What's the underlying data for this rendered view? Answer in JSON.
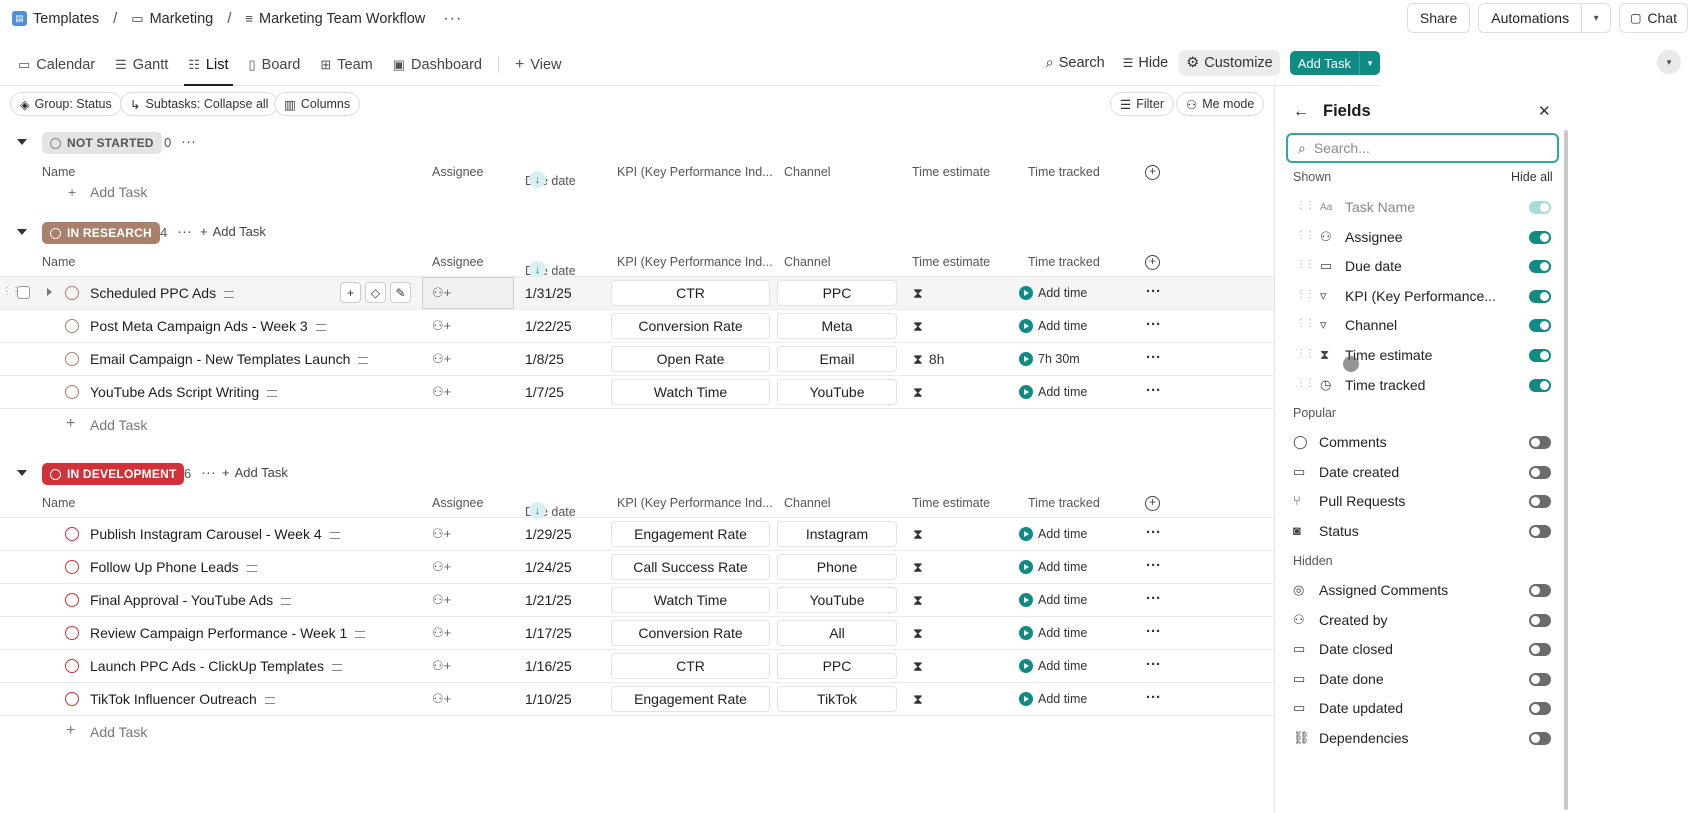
{
  "breadcrumb": {
    "items": [
      "Templates",
      "Marketing",
      "Marketing Team Workflow"
    ],
    "more": "···"
  },
  "topActions": {
    "share": "Share",
    "automations": "Automations",
    "chat": "Chat"
  },
  "tabs": [
    {
      "label": "Calendar",
      "icon": "calendar-icon"
    },
    {
      "label": "Gantt",
      "icon": "gantt-icon"
    },
    {
      "label": "List",
      "icon": "list-icon",
      "active": true
    },
    {
      "label": "Board",
      "icon": "board-icon"
    },
    {
      "label": "Team",
      "icon": "team-icon"
    },
    {
      "label": "Dashboard",
      "icon": "dashboard-icon"
    }
  ],
  "addView": "View",
  "toolbarRight": {
    "search": "Search",
    "hide": "Hide",
    "customize": "Customize",
    "addTask": "Add Task"
  },
  "filters": {
    "group": "Group: Status",
    "subtasks": "Subtasks: Collapse all",
    "columns": "Columns",
    "filter": "Filter",
    "meMode": "Me mode"
  },
  "columns": {
    "name": "Name",
    "assignee": "Assignee",
    "due": "Due date",
    "kpi": "KPI (Key Performance Ind...",
    "channel": "Channel",
    "estimate": "Time estimate",
    "tracked": "Time tracked"
  },
  "addTaskLabel": "Add Task",
  "addTimeLabel": "Add time",
  "groups": [
    {
      "status": "NOT STARTED",
      "count": "0",
      "bg": "#e4e4e4",
      "fg": "#555555",
      "tasks": []
    },
    {
      "status": "IN RESEARCH",
      "count": "4",
      "bg": "#a9806c",
      "fg": "#ffffff",
      "tasks": [
        {
          "name": "Scheduled PPC Ads",
          "due": "1/31/25",
          "kpi": "CTR",
          "channel": "PPC",
          "estimate": "",
          "tracked": ""
        },
        {
          "name": "Post Meta Campaign Ads - Week 3",
          "due": "1/22/25",
          "kpi": "Conversion Rate",
          "channel": "Meta",
          "estimate": "",
          "tracked": ""
        },
        {
          "name": "Email Campaign - New Templates Launch",
          "due": "1/8/25",
          "kpi": "Open Rate",
          "channel": "Email",
          "estimate": "8h",
          "tracked": "7h 30m"
        },
        {
          "name": "YouTube Ads Script Writing",
          "due": "1/7/25",
          "kpi": "Watch Time",
          "channel": "YouTube",
          "estimate": "",
          "tracked": ""
        }
      ]
    },
    {
      "status": "IN DEVELOPMENT",
      "count": "6",
      "bg": "#d0323a",
      "fg": "#ffffff",
      "tasks": [
        {
          "name": "Publish Instagram Carousel - Week 4",
          "due": "1/29/25",
          "kpi": "Engagement Rate",
          "channel": "Instagram",
          "estimate": "",
          "tracked": ""
        },
        {
          "name": "Follow Up Phone Leads",
          "due": "1/24/25",
          "kpi": "Call Success Rate",
          "channel": "Phone",
          "estimate": "",
          "tracked": ""
        },
        {
          "name": "Final Approval - YouTube Ads",
          "due": "1/21/25",
          "kpi": "Watch Time",
          "channel": "YouTube",
          "estimate": "",
          "tracked": ""
        },
        {
          "name": "Review Campaign Performance - Week 1",
          "due": "1/17/25",
          "kpi": "Conversion Rate",
          "channel": "All",
          "estimate": "",
          "tracked": ""
        },
        {
          "name": "Launch PPC Ads - ClickUp Templates",
          "due": "1/16/25",
          "kpi": "CTR",
          "channel": "PPC",
          "estimate": "",
          "tracked": ""
        },
        {
          "name": "TikTok Influencer Outreach",
          "due": "1/10/25",
          "kpi": "Engagement Rate",
          "channel": "TikTok",
          "estimate": "",
          "tracked": ""
        }
      ]
    }
  ],
  "fieldsPanel": {
    "title": "Fields",
    "searchPlaceholder": "Search...",
    "shownLabel": "Shown",
    "hideAll": "Hide all",
    "shown": [
      {
        "label": "Task Name",
        "icon": "text-field-icon",
        "state": "dis"
      },
      {
        "label": "Assignee",
        "icon": "person-icon",
        "state": "on"
      },
      {
        "label": "Due date",
        "icon": "calendar-icon",
        "state": "on"
      },
      {
        "label": "KPI (Key Performance...",
        "icon": "dropdown-field-icon",
        "state": "on"
      },
      {
        "label": "Channel",
        "icon": "dropdown-field-icon",
        "state": "on"
      },
      {
        "label": "Time estimate",
        "icon": "hourglass-icon",
        "state": "on"
      },
      {
        "label": "Time tracked",
        "icon": "stopwatch-icon",
        "state": "on"
      }
    ],
    "popularLabel": "Popular",
    "popular": [
      {
        "label": "Comments",
        "icon": "comment-icon",
        "state": "off"
      },
      {
        "label": "Date created",
        "icon": "calendar-icon",
        "state": "off"
      },
      {
        "label": "Pull Requests",
        "icon": "pull-request-icon",
        "state": "off"
      },
      {
        "label": "Status",
        "icon": "status-icon",
        "state": "off"
      }
    ],
    "hiddenLabel": "Hidden",
    "hidden": [
      {
        "label": "Assigned Comments",
        "icon": "assigned-comment-icon",
        "state": "off"
      },
      {
        "label": "Created by",
        "icon": "person-icon",
        "state": "off"
      },
      {
        "label": "Date closed",
        "icon": "calendar-icon",
        "state": "off"
      },
      {
        "label": "Date done",
        "icon": "calendar-icon",
        "state": "off"
      },
      {
        "label": "Date updated",
        "icon": "calendar-icon",
        "state": "off"
      },
      {
        "label": "Dependencies",
        "icon": "dependency-icon",
        "state": "off"
      }
    ]
  }
}
